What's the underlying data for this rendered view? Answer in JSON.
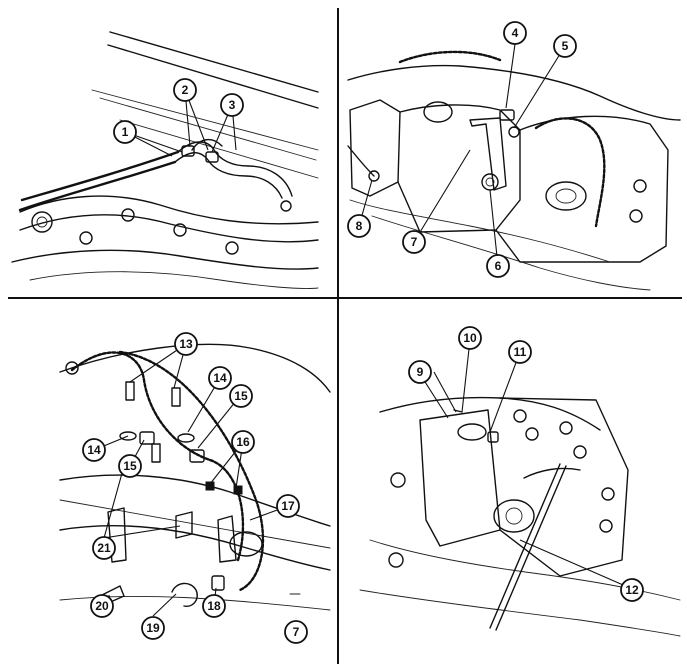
{
  "callouts": {
    "c1": "1",
    "c2": "2",
    "c3": "3",
    "c4": "4",
    "c5": "5",
    "c6": "6",
    "c7a": "7",
    "c8": "8",
    "c9": "9",
    "c10": "10",
    "c11": "11",
    "c12": "12",
    "c13": "13",
    "c14a": "14",
    "c14b": "14",
    "c15a": "15",
    "c15b": "15",
    "c16": "16",
    "c17": "17",
    "c18": "18",
    "c19": "19",
    "c20": "20",
    "c21": "21",
    "c7b": "7"
  }
}
